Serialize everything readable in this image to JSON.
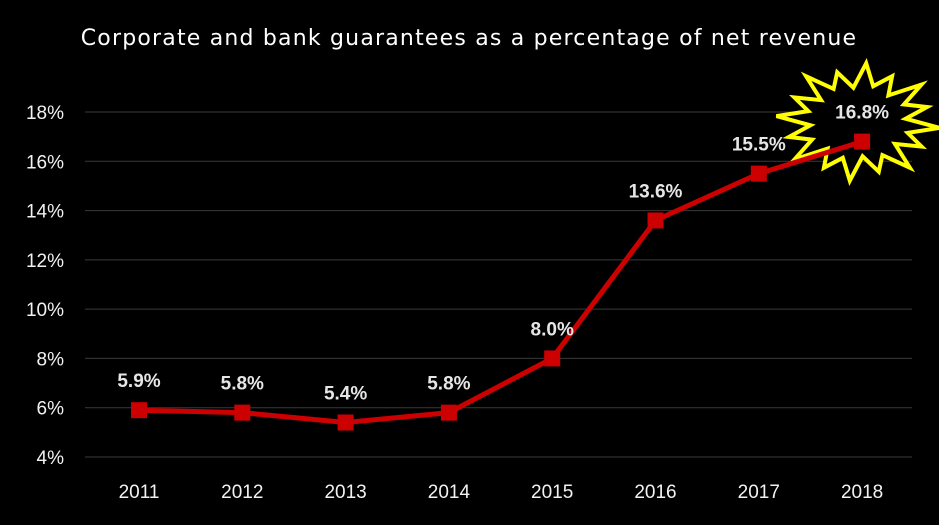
{
  "chart_data": {
    "type": "line",
    "title": "Corporate and bank guarantees as a percentage of net revenue",
    "xlabel": "",
    "ylabel": "",
    "categories": [
      "2011",
      "2012",
      "2013",
      "2014",
      "2015",
      "2016",
      "2017",
      "2018"
    ],
    "series": [
      {
        "values": [
          5.9,
          5.8,
          5.4,
          5.8,
          8.0,
          13.6,
          15.5,
          16.8
        ],
        "color": "#cc0000"
      }
    ],
    "data_labels": [
      "5.9%",
      "5.8%",
      "5.4%",
      "5.8%",
      "8.0%",
      "13.6%",
      "15.5%",
      "16.8%"
    ],
    "ylim": [
      4,
      18
    ],
    "y_ticks": [
      4,
      6,
      8,
      10,
      12,
      14,
      16,
      18
    ],
    "y_tick_labels": [
      "4%",
      "6%",
      "8%",
      "10%",
      "12%",
      "14%",
      "16%",
      "18%"
    ],
    "grid": true,
    "legend": "none",
    "highlight": {
      "category": "2018",
      "shape": "starburst",
      "stroke_color": "#ffff00"
    },
    "colors": {
      "background": "#000000",
      "text": "#ffffff",
      "grid": "#3a3a3a",
      "line": "#cc0000"
    }
  }
}
